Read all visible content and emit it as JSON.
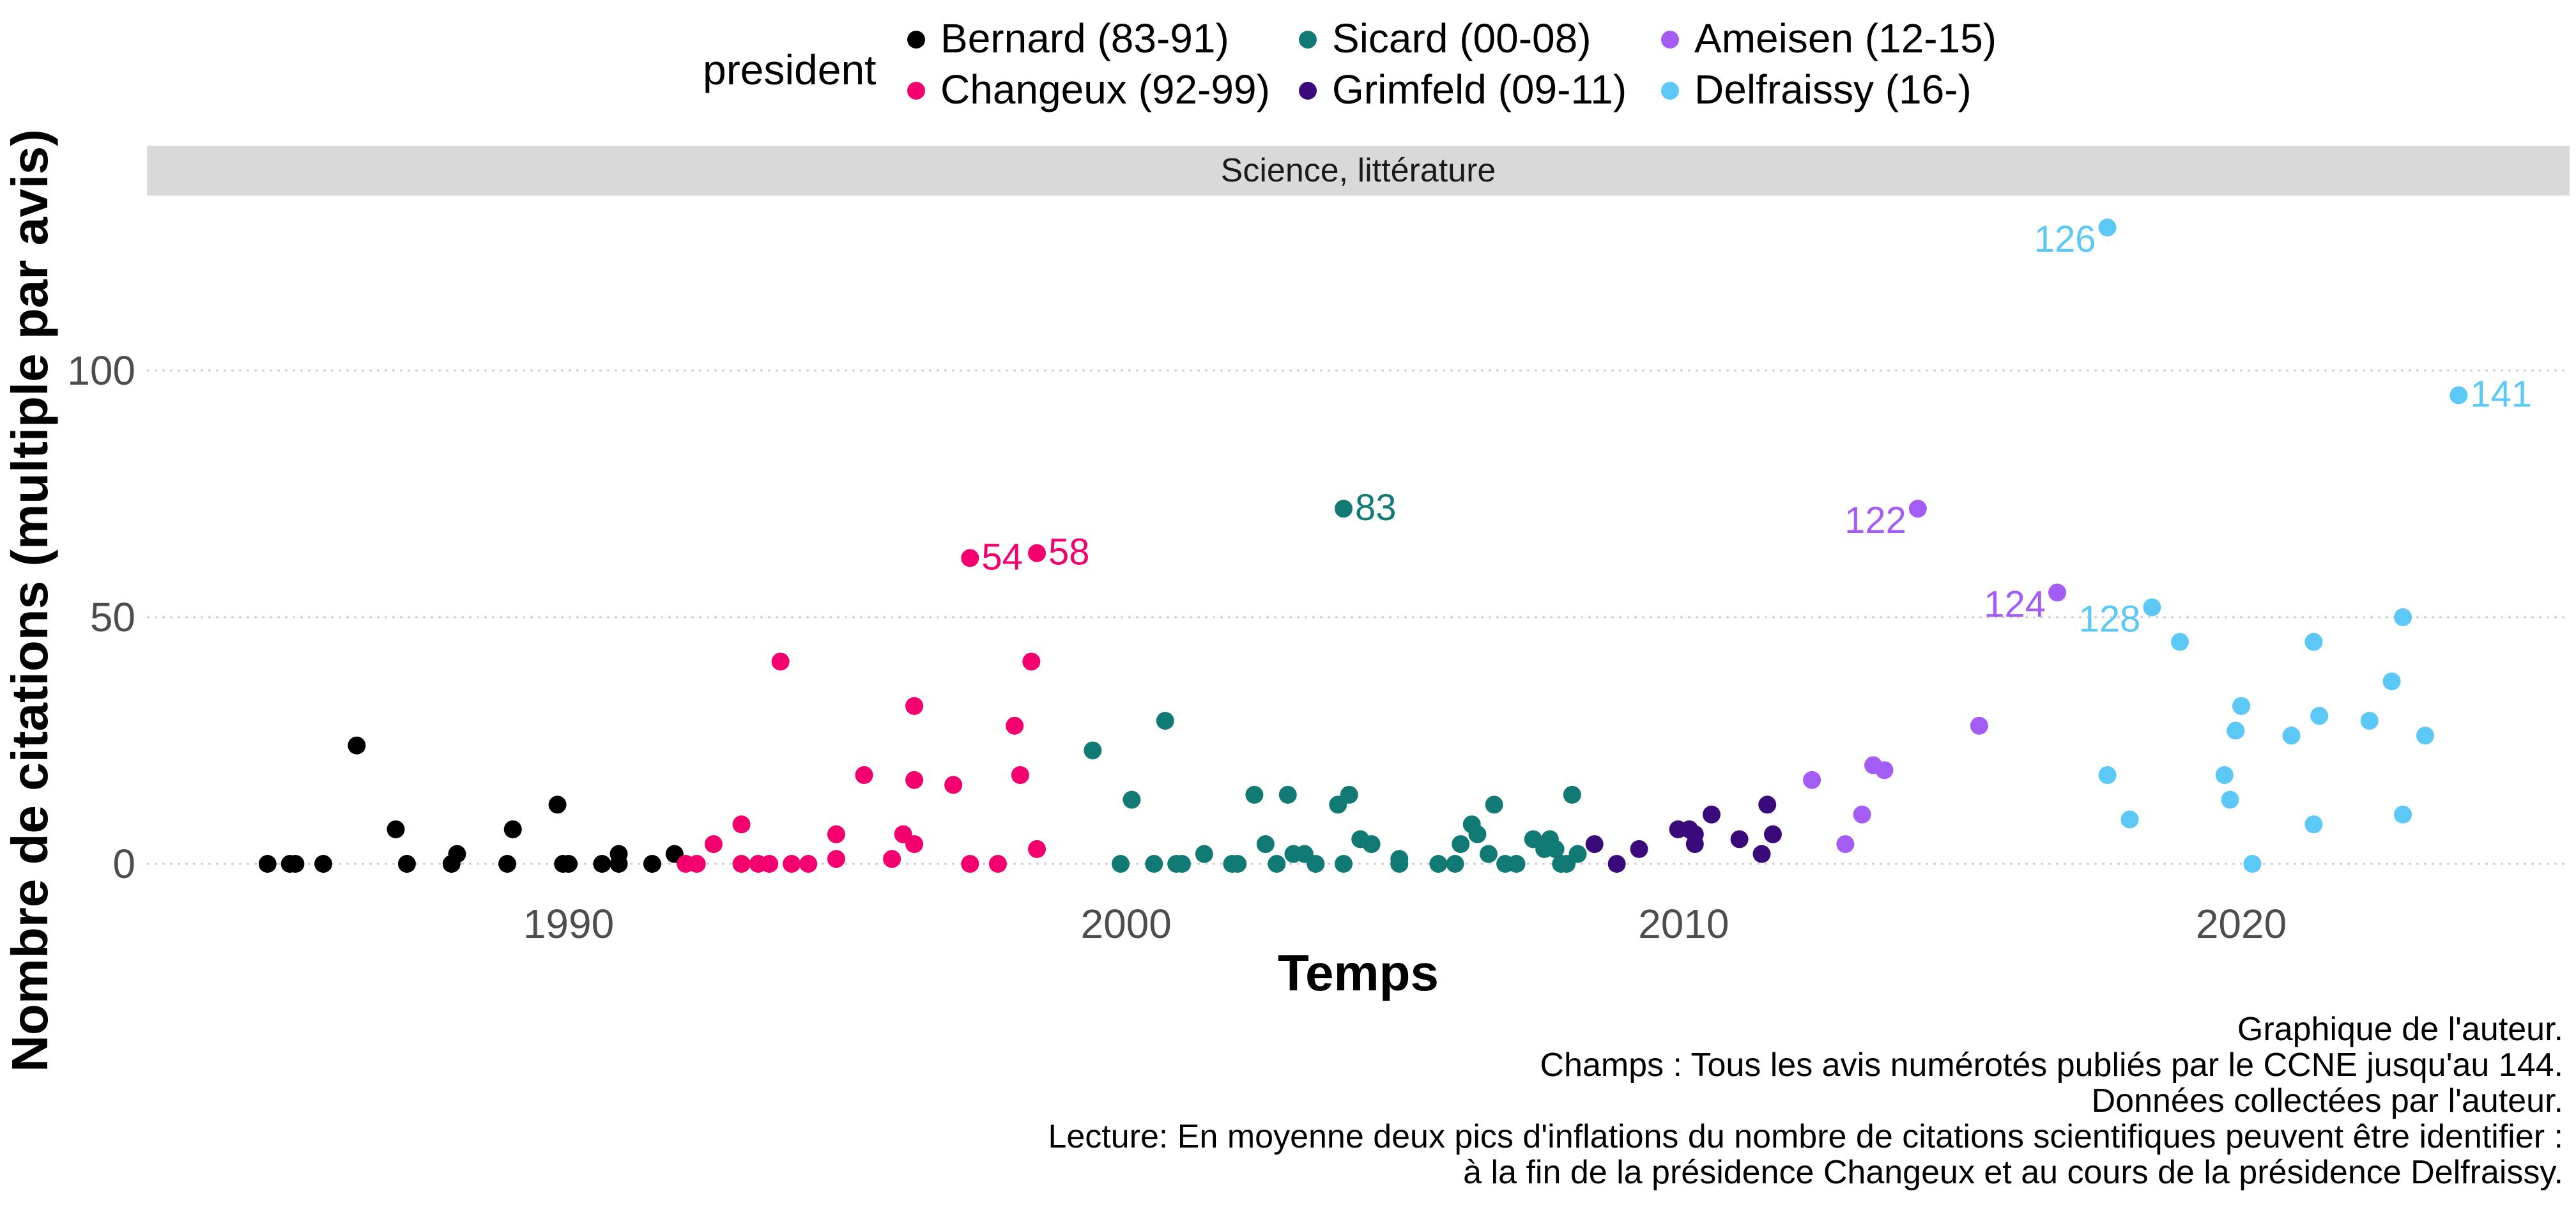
{
  "chart_data": {
    "type": "scatter",
    "facet_title": "Science, littérature",
    "xlabel": "Temps",
    "ylabel": "Nombre de citations (multiple par avis)",
    "xlim": [
      1983,
      2026.5
    ],
    "ylim": [
      -8,
      132
    ],
    "x_ticks": [
      1990,
      2000,
      2010,
      2020
    ],
    "y_ticks": [
      0,
      50,
      100
    ],
    "grid": "horizontal dotted",
    "legend": {
      "title": "president",
      "position": "top"
    },
    "series": [
      {
        "name": "Bernard (83-91)",
        "color": "#000000",
        "points": [
          [
            1984.6,
            0
          ],
          [
            1985.0,
            0
          ],
          [
            1985.1,
            0
          ],
          [
            1985.6,
            0
          ],
          [
            1986.2,
            24
          ],
          [
            1986.9,
            7
          ],
          [
            1987.1,
            0
          ],
          [
            1987.9,
            0
          ],
          [
            1988.0,
            2
          ],
          [
            1988.9,
            0
          ],
          [
            1989.0,
            7
          ],
          [
            1989.8,
            12
          ],
          [
            1989.9,
            0
          ],
          [
            1990.0,
            0
          ],
          [
            1990.6,
            0
          ],
          [
            1990.9,
            2
          ],
          [
            1990.9,
            0
          ],
          [
            1991.5,
            0
          ],
          [
            1991.9,
            2
          ]
        ]
      },
      {
        "name": "Changeux (92-99)",
        "color": "#f4006e",
        "points": [
          [
            1992.1,
            0
          ],
          [
            1992.3,
            0
          ],
          [
            1992.6,
            4
          ],
          [
            1993.1,
            8
          ],
          [
            1993.1,
            0
          ],
          [
            1993.4,
            0
          ],
          [
            1993.6,
            0
          ],
          [
            1993.8,
            41
          ],
          [
            1994.0,
            0
          ],
          [
            1994.3,
            0
          ],
          [
            1994.8,
            6
          ],
          [
            1994.8,
            1
          ],
          [
            1995.3,
            18
          ],
          [
            1995.8,
            1
          ],
          [
            1996.0,
            6
          ],
          [
            1996.2,
            32
          ],
          [
            1996.2,
            17
          ],
          [
            1996.2,
            4
          ],
          [
            1996.9,
            16
          ],
          [
            1997.2,
            62
          ],
          [
            1997.2,
            0
          ],
          [
            1997.7,
            0
          ],
          [
            1998.0,
            28
          ],
          [
            1998.1,
            18
          ],
          [
            1998.4,
            63
          ],
          [
            1998.3,
            41
          ],
          [
            1998.4,
            3
          ]
        ]
      },
      {
        "name": "Sicard (00-08)",
        "color": "#127a75",
        "points": [
          [
            1999.4,
            23
          ],
          [
            1999.9,
            0
          ],
          [
            2000.1,
            13
          ],
          [
            2000.5,
            0
          ],
          [
            2000.7,
            29
          ],
          [
            2000.9,
            0
          ],
          [
            2001.0,
            0
          ],
          [
            2001.4,
            2
          ],
          [
            2001.9,
            0
          ],
          [
            2002.0,
            0
          ],
          [
            2002.3,
            14
          ],
          [
            2002.5,
            4
          ],
          [
            2002.7,
            0
          ],
          [
            2002.9,
            14
          ],
          [
            2003.0,
            2
          ],
          [
            2003.2,
            2
          ],
          [
            2003.4,
            0
          ],
          [
            2003.8,
            12
          ],
          [
            2003.9,
            0
          ],
          [
            2004.0,
            14
          ],
          [
            2003.9,
            72
          ],
          [
            2004.2,
            5
          ],
          [
            2004.4,
            4
          ],
          [
            2004.9,
            0
          ],
          [
            2004.9,
            1
          ],
          [
            2005.6,
            0
          ],
          [
            2005.9,
            0
          ],
          [
            2006.0,
            4
          ],
          [
            2006.2,
            8
          ],
          [
            2006.3,
            6
          ],
          [
            2006.6,
            12
          ],
          [
            2006.5,
            2
          ],
          [
            2006.8,
            0
          ],
          [
            2007.0,
            0
          ],
          [
            2007.3,
            5
          ],
          [
            2007.5,
            3
          ],
          [
            2007.6,
            5
          ],
          [
            2007.7,
            3
          ],
          [
            2007.8,
            0
          ],
          [
            2008.0,
            14
          ],
          [
            2007.9,
            0
          ],
          [
            2008.1,
            2
          ]
        ]
      },
      {
        "name": "Grimfeld (09-11)",
        "color": "#3a0a7a",
        "points": [
          [
            2008.4,
            4
          ],
          [
            2008.8,
            0
          ],
          [
            2009.2,
            3
          ],
          [
            2009.9,
            7
          ],
          [
            2010.1,
            7
          ],
          [
            2010.2,
            4
          ],
          [
            2010.2,
            6
          ],
          [
            2010.5,
            10
          ],
          [
            2011.0,
            5
          ],
          [
            2011.4,
            2
          ],
          [
            2011.5,
            12
          ],
          [
            2011.6,
            6
          ]
        ]
      },
      {
        "name": "Ameisen (12-15)",
        "color": "#a35cf4",
        "points": [
          [
            2012.3,
            17
          ],
          [
            2012.9,
            4
          ],
          [
            2013.2,
            10
          ],
          [
            2013.4,
            20
          ],
          [
            2013.6,
            19
          ],
          [
            2014.2,
            72
          ],
          [
            2015.3,
            28
          ],
          [
            2016.7,
            55
          ]
        ]
      },
      {
        "name": "Delfraissy (16-)",
        "color": "#5bc8f5",
        "points": [
          [
            2017.6,
            129
          ],
          [
            2017.6,
            18
          ],
          [
            2018.0,
            9
          ],
          [
            2018.4,
            52
          ],
          [
            2018.9,
            45
          ],
          [
            2019.7,
            18
          ],
          [
            2019.8,
            13
          ],
          [
            2020.0,
            32
          ],
          [
            2019.9,
            27
          ],
          [
            2020.2,
            0
          ],
          [
            2020.9,
            26
          ],
          [
            2021.3,
            45
          ],
          [
            2021.4,
            30
          ],
          [
            2021.3,
            8
          ],
          [
            2022.3,
            29
          ],
          [
            2022.7,
            37
          ],
          [
            2022.9,
            50
          ],
          [
            2022.9,
            10
          ],
          [
            2023.3,
            26
          ],
          [
            2023.9,
            95
          ]
        ]
      }
    ],
    "annotations": [
      {
        "text": "54",
        "x": 1997.2,
        "y": 62,
        "series": "Changeux (92-99)",
        "side": "right"
      },
      {
        "text": "58",
        "x": 1998.4,
        "y": 63,
        "series": "Changeux (92-99)",
        "side": "right"
      },
      {
        "text": "83",
        "x": 2003.9,
        "y": 72,
        "series": "Sicard (00-08)",
        "side": "right"
      },
      {
        "text": "122",
        "x": 2014.2,
        "y": 72,
        "series": "Ameisen (12-15)",
        "side": "left"
      },
      {
        "text": "124",
        "x": 2016.7,
        "y": 55,
        "series": "Ameisen (12-15)",
        "side": "left"
      },
      {
        "text": "126",
        "x": 2017.6,
        "y": 129,
        "series": "Delfraissy (16-)",
        "side": "left"
      },
      {
        "text": "128",
        "x": 2018.4,
        "y": 52,
        "series": "Delfraissy (16-)",
        "side": "left"
      },
      {
        "text": "141",
        "x": 2023.9,
        "y": 95,
        "series": "Delfraissy (16-)",
        "side": "right"
      }
    ],
    "caption": [
      "Graphique de l'auteur.",
      "Champs : Tous les avis numérotés publiés par le CCNE jusqu'au 144.",
      "Données collectées par l'auteur.",
      "Lecture: En moyenne deux pics d'inflations du nombre de citations scientifiques peuvent être identifier :",
      "à la fin de la présidence Changeux et au cours de la présidence Delfraissy."
    ]
  }
}
